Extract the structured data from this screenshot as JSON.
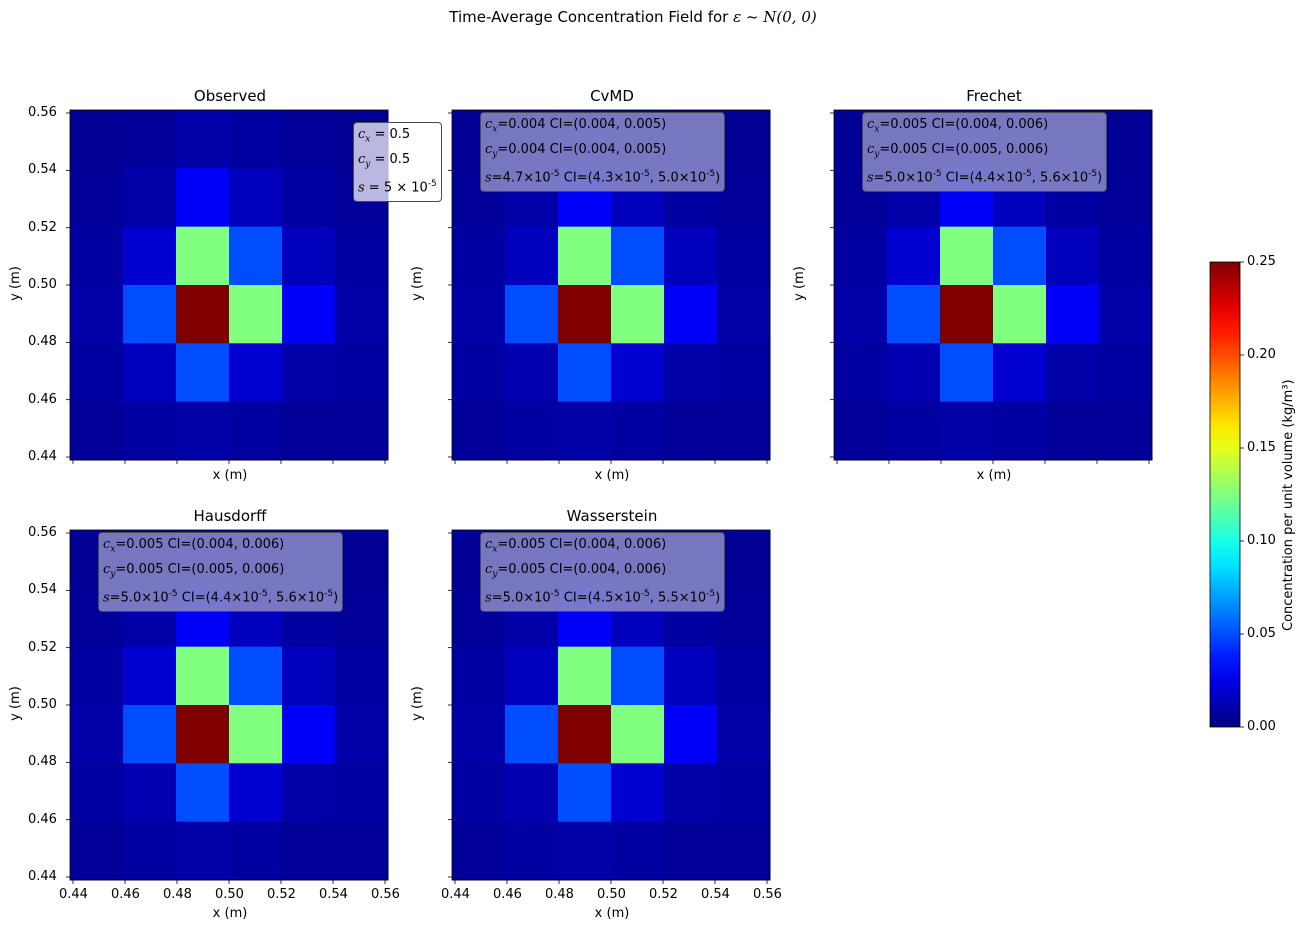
{
  "chart_data": {
    "suptitle_prefix": "Time-Average Concentration Field for ",
    "suptitle_math": "ε ~ N(0, 0)",
    "type": "heatmap",
    "colormap": "jet",
    "x_ticks": [
      "0.44",
      "0.46",
      "0.48",
      "0.50",
      "0.52",
      "0.54",
      "0.56"
    ],
    "y_ticks": [
      "0.56",
      "0.54",
      "0.52",
      "0.50",
      "0.48",
      "0.46",
      "0.44"
    ],
    "xlabel": "x (m)",
    "ylabel": "y (m)",
    "xlim": [
      0.44,
      0.56
    ],
    "ylim": [
      0.44,
      0.56
    ],
    "panels": [
      {
        "title": "Observed",
        "show_x_ticklabels": false,
        "show_y_ticklabels": true,
        "box_style": "obs",
        "box_lines": [
          "cx = 0.5",
          "cy = 0.5",
          "s = 5 × 10^-5"
        ],
        "grid": [
          [
            0.005,
            0.006,
            0.01,
            0.008,
            0.006,
            0.005
          ],
          [
            0.006,
            0.01,
            0.03,
            0.015,
            0.008,
            0.006
          ],
          [
            0.008,
            0.02,
            0.125,
            0.05,
            0.015,
            0.008
          ],
          [
            0.01,
            0.05,
            0.25,
            0.125,
            0.03,
            0.01
          ],
          [
            0.008,
            0.015,
            0.05,
            0.02,
            0.01,
            0.008
          ],
          [
            0.006,
            0.008,
            0.01,
            0.008,
            0.006,
            0.006
          ]
        ]
      },
      {
        "title": "CvMD",
        "show_x_ticklabels": false,
        "show_y_ticklabels": false,
        "box_style": "fit",
        "box_lines": [
          "cx=0.004 CI=(0.004, 0.005)",
          "cy=0.004 CI=(0.004, 0.005)",
          "s=4.7×10^-5 CI=(4.3×10^-5, 5.0×10^-5)"
        ],
        "grid": [
          [
            0.005,
            0.006,
            0.01,
            0.008,
            0.006,
            0.005
          ],
          [
            0.006,
            0.01,
            0.03,
            0.015,
            0.008,
            0.006
          ],
          [
            0.008,
            0.015,
            0.125,
            0.05,
            0.015,
            0.008
          ],
          [
            0.01,
            0.05,
            0.25,
            0.125,
            0.03,
            0.01
          ],
          [
            0.008,
            0.012,
            0.05,
            0.02,
            0.01,
            0.008
          ],
          [
            0.006,
            0.008,
            0.01,
            0.008,
            0.006,
            0.006
          ]
        ]
      },
      {
        "title": "Frechet",
        "show_x_ticklabels": false,
        "show_y_ticklabels": false,
        "box_style": "fit",
        "box_lines": [
          "cx=0.005 CI=(0.004, 0.006)",
          "cy=0.005 CI=(0.005, 0.006)",
          "s=5.0×10^-5 CI=(4.4×10^-5, 5.6×10^-5)"
        ],
        "grid": [
          [
            0.005,
            0.006,
            0.01,
            0.008,
            0.006,
            0.005
          ],
          [
            0.006,
            0.01,
            0.03,
            0.015,
            0.008,
            0.006
          ],
          [
            0.008,
            0.02,
            0.125,
            0.05,
            0.015,
            0.008
          ],
          [
            0.01,
            0.05,
            0.25,
            0.125,
            0.03,
            0.01
          ],
          [
            0.008,
            0.012,
            0.05,
            0.02,
            0.01,
            0.008
          ],
          [
            0.006,
            0.008,
            0.01,
            0.008,
            0.006,
            0.006
          ]
        ]
      },
      {
        "title": "Hausdorff",
        "show_x_ticklabels": true,
        "show_y_ticklabels": true,
        "box_style": "fit",
        "box_lines": [
          "cx=0.005 CI=(0.004, 0.006)",
          "cy=0.005 CI=(0.005, 0.006)",
          "s=5.0×10^-5 CI=(4.4×10^-5, 5.6×10^-5)"
        ],
        "grid": [
          [
            0.005,
            0.006,
            0.01,
            0.008,
            0.006,
            0.005
          ],
          [
            0.006,
            0.01,
            0.03,
            0.015,
            0.008,
            0.006
          ],
          [
            0.008,
            0.02,
            0.125,
            0.05,
            0.015,
            0.008
          ],
          [
            0.01,
            0.05,
            0.25,
            0.125,
            0.03,
            0.01
          ],
          [
            0.008,
            0.012,
            0.05,
            0.02,
            0.01,
            0.008
          ],
          [
            0.006,
            0.008,
            0.01,
            0.008,
            0.006,
            0.006
          ]
        ]
      },
      {
        "title": "Wasserstein",
        "show_x_ticklabels": true,
        "show_y_ticklabels": false,
        "box_style": "fit",
        "box_lines": [
          "cx=0.005 CI=(0.004, 0.006)",
          "cy=0.005 CI=(0.004, 0.006)",
          "s=5.0×10^-5 CI=(4.5×10^-5, 5.5×10^-5)"
        ],
        "grid": [
          [
            0.005,
            0.006,
            0.01,
            0.008,
            0.006,
            0.005
          ],
          [
            0.006,
            0.01,
            0.03,
            0.015,
            0.008,
            0.006
          ],
          [
            0.008,
            0.015,
            0.125,
            0.05,
            0.015,
            0.008
          ],
          [
            0.01,
            0.05,
            0.25,
            0.125,
            0.03,
            0.01
          ],
          [
            0.008,
            0.012,
            0.05,
            0.02,
            0.01,
            0.008
          ],
          [
            0.006,
            0.008,
            0.01,
            0.008,
            0.006,
            0.006
          ]
        ]
      }
    ],
    "colorbar": {
      "label": "Concentration per unit volume (kg/m³)",
      "range": [
        0,
        0.25
      ],
      "ticks": [
        "0.25",
        "0.20",
        "0.15",
        "0.10",
        "0.05",
        "0.00"
      ]
    }
  }
}
